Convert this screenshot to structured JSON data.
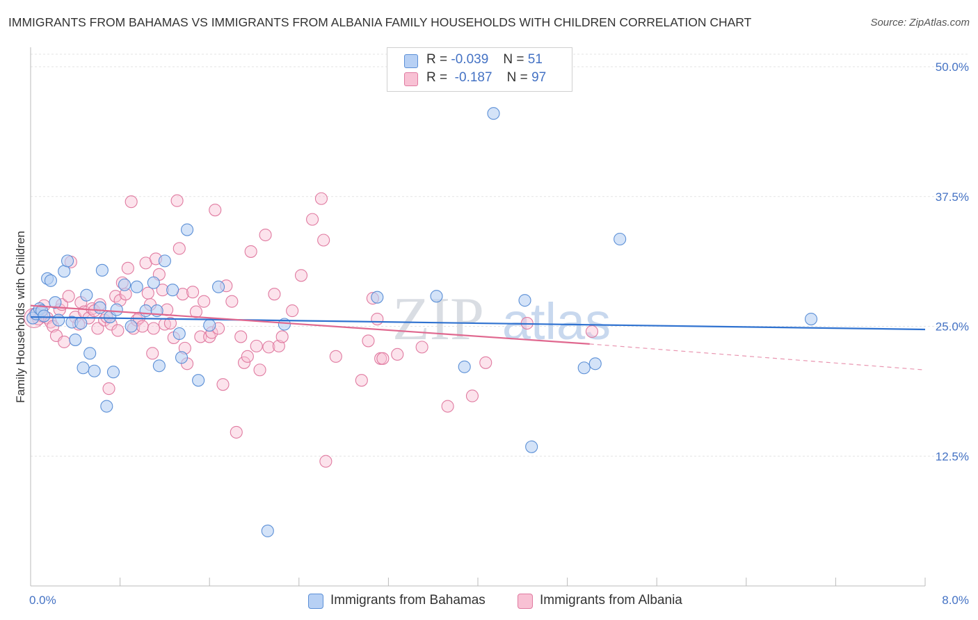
{
  "title": "IMMIGRANTS FROM BAHAMAS VS IMMIGRANTS FROM ALBANIA FAMILY HOUSEHOLDS WITH CHILDREN CORRELATION CHART",
  "source": "Source: ZipAtlas.com",
  "watermark": {
    "zip": "ZIP",
    "atlas": "atlas"
  },
  "legend": {
    "r_label": "R =",
    "n_label": "N =",
    "bahamas": {
      "r": "-0.039",
      "n": "51"
    },
    "albania": {
      "r": "-0.187",
      "n": "97"
    }
  },
  "colors": {
    "bahamas_fill": "#b7d0f4",
    "bahamas_stroke": "#5b8fd6",
    "bahamas_line": "#2f72d0",
    "albania_fill": "#f8c1d4",
    "albania_stroke": "#e07aa0",
    "albania_line": "#e0688f",
    "tick_label": "#4472c4",
    "grid": "#e3e3e3"
  },
  "chart_data": {
    "type": "scatter",
    "title": "IMMIGRANTS FROM BAHAMAS VS IMMIGRANTS FROM ALBANIA FAMILY HOUSEHOLDS WITH CHILDREN CORRELATION CHART",
    "xlabel": "",
    "ylabel": "Family Households with Children",
    "xlim": [
      0,
      8
    ],
    "ylim": [
      0,
      50
    ],
    "x_tick_labels": [
      "0.0%",
      "8.0%"
    ],
    "y_ticks": [
      12.5,
      25,
      37.5,
      50
    ],
    "y_tick_labels": [
      "12.5%",
      "25.0%",
      "37.5%",
      "50.0%"
    ],
    "grid": true,
    "legend_position": "top-center",
    "series": [
      {
        "name": "Immigrants from Bahamas",
        "trend": {
          "x": [
            0.0,
            8.0
          ],
          "y": [
            25.9,
            24.7
          ]
        },
        "points": [
          [
            0.02,
            25.8
          ],
          [
            0.05,
            26.2
          ],
          [
            0.08,
            26.7
          ],
          [
            0.1,
            26.5
          ],
          [
            0.12,
            26.0
          ],
          [
            0.15,
            29.6
          ],
          [
            0.18,
            29.4
          ],
          [
            0.22,
            27.3
          ],
          [
            0.25,
            25.6
          ],
          [
            0.3,
            30.3
          ],
          [
            0.33,
            31.3
          ],
          [
            0.37,
            25.4
          ],
          [
            0.4,
            23.7
          ],
          [
            0.45,
            25.3
          ],
          [
            0.47,
            21.0
          ],
          [
            0.5,
            28.0
          ],
          [
            0.53,
            22.4
          ],
          [
            0.57,
            20.7
          ],
          [
            0.62,
            26.8
          ],
          [
            0.64,
            30.4
          ],
          [
            0.68,
            17.3
          ],
          [
            0.71,
            25.9
          ],
          [
            0.74,
            20.6
          ],
          [
            0.77,
            26.6
          ],
          [
            0.84,
            29.0
          ],
          [
            0.9,
            25.0
          ],
          [
            0.95,
            28.8
          ],
          [
            1.03,
            26.5
          ],
          [
            1.1,
            29.2
          ],
          [
            1.13,
            26.5
          ],
          [
            1.15,
            21.2
          ],
          [
            1.2,
            31.3
          ],
          [
            1.27,
            28.5
          ],
          [
            1.33,
            24.3
          ],
          [
            1.35,
            22.0
          ],
          [
            1.4,
            34.3
          ],
          [
            1.5,
            19.8
          ],
          [
            1.6,
            25.1
          ],
          [
            1.68,
            28.8
          ],
          [
            2.12,
            5.3
          ],
          [
            2.27,
            25.2
          ],
          [
            3.1,
            27.8
          ],
          [
            3.63,
            27.9
          ],
          [
            4.14,
            45.5
          ],
          [
            3.88,
            21.1
          ],
          [
            4.42,
            27.5
          ],
          [
            4.48,
            13.4
          ],
          [
            4.95,
            21.0
          ],
          [
            5.05,
            21.4
          ],
          [
            5.27,
            33.4
          ],
          [
            6.98,
            25.7
          ]
        ]
      },
      {
        "name": "Immigrants from Albania",
        "trend": {
          "x": [
            0.0,
            5.0
          ],
          "y": [
            27.0,
            23.3
          ]
        },
        "trend_dashed": {
          "x": [
            5.0,
            8.0
          ],
          "y": [
            23.3,
            20.8
          ]
        },
        "points": [
          [
            0.04,
            26.2
          ],
          [
            0.07,
            25.7
          ],
          [
            0.1,
            26.0
          ],
          [
            0.12,
            27.0
          ],
          [
            0.15,
            25.8
          ],
          [
            0.18,
            25.4
          ],
          [
            0.2,
            25.0
          ],
          [
            0.23,
            24.1
          ],
          [
            0.26,
            26.6
          ],
          [
            0.28,
            27.1
          ],
          [
            0.3,
            23.5
          ],
          [
            0.34,
            27.9
          ],
          [
            0.36,
            31.2
          ],
          [
            0.4,
            25.9
          ],
          [
            0.43,
            25.2
          ],
          [
            0.45,
            27.3
          ],
          [
            0.48,
            26.4
          ],
          [
            0.52,
            25.8
          ],
          [
            0.55,
            26.7
          ],
          [
            0.57,
            26.5
          ],
          [
            0.6,
            24.8
          ],
          [
            0.62,
            27.1
          ],
          [
            0.66,
            25.6
          ],
          [
            0.68,
            25.9
          ],
          [
            0.7,
            19.0
          ],
          [
            0.72,
            25.2
          ],
          [
            0.76,
            27.9
          ],
          [
            0.78,
            24.6
          ],
          [
            0.8,
            27.5
          ],
          [
            0.82,
            29.2
          ],
          [
            0.85,
            28.1
          ],
          [
            0.87,
            30.6
          ],
          [
            0.9,
            37.0
          ],
          [
            0.92,
            24.8
          ],
          [
            0.95,
            25.6
          ],
          [
            0.97,
            25.8
          ],
          [
            1.0,
            25.0
          ],
          [
            1.03,
            31.1
          ],
          [
            1.05,
            28.2
          ],
          [
            1.07,
            27.1
          ],
          [
            1.09,
            22.4
          ],
          [
            1.1,
            24.8
          ],
          [
            1.12,
            31.5
          ],
          [
            1.15,
            30.0
          ],
          [
            1.18,
            28.5
          ],
          [
            1.2,
            25.2
          ],
          [
            1.22,
            26.6
          ],
          [
            1.25,
            25.3
          ],
          [
            1.28,
            23.9
          ],
          [
            1.31,
            37.1
          ],
          [
            1.33,
            32.5
          ],
          [
            1.36,
            28.1
          ],
          [
            1.38,
            22.9
          ],
          [
            1.4,
            21.4
          ],
          [
            1.45,
            28.3
          ],
          [
            1.48,
            26.4
          ],
          [
            1.52,
            24.0
          ],
          [
            1.55,
            27.4
          ],
          [
            1.6,
            24.0
          ],
          [
            1.62,
            24.4
          ],
          [
            1.65,
            36.2
          ],
          [
            1.68,
            24.8
          ],
          [
            1.72,
            19.4
          ],
          [
            1.75,
            28.9
          ],
          [
            1.8,
            27.4
          ],
          [
            1.84,
            14.8
          ],
          [
            1.88,
            24.0
          ],
          [
            1.91,
            21.5
          ],
          [
            1.94,
            22.1
          ],
          [
            1.97,
            32.2
          ],
          [
            2.02,
            23.1
          ],
          [
            2.05,
            20.8
          ],
          [
            2.1,
            33.8
          ],
          [
            2.13,
            23.0
          ],
          [
            2.18,
            28.1
          ],
          [
            2.22,
            23.1
          ],
          [
            2.25,
            24.0
          ],
          [
            2.34,
            26.5
          ],
          [
            2.42,
            29.9
          ],
          [
            2.52,
            35.3
          ],
          [
            2.6,
            37.3
          ],
          [
            2.62,
            33.3
          ],
          [
            2.64,
            12.0
          ],
          [
            2.73,
            22.1
          ],
          [
            2.96,
            19.8
          ],
          [
            3.02,
            23.6
          ],
          [
            3.06,
            27.7
          ],
          [
            3.1,
            25.7
          ],
          [
            3.13,
            21.9
          ],
          [
            3.28,
            22.3
          ],
          [
            3.5,
            23.0
          ],
          [
            3.73,
            17.3
          ],
          [
            3.95,
            18.3
          ],
          [
            4.07,
            21.5
          ],
          [
            4.44,
            25.3
          ],
          [
            5.02,
            24.5
          ],
          [
            3.15,
            21.9
          ]
        ]
      }
    ]
  },
  "bottom_legend": {
    "bahamas_label": "Immigrants from Bahamas",
    "albania_label": "Immigrants from Albania"
  }
}
